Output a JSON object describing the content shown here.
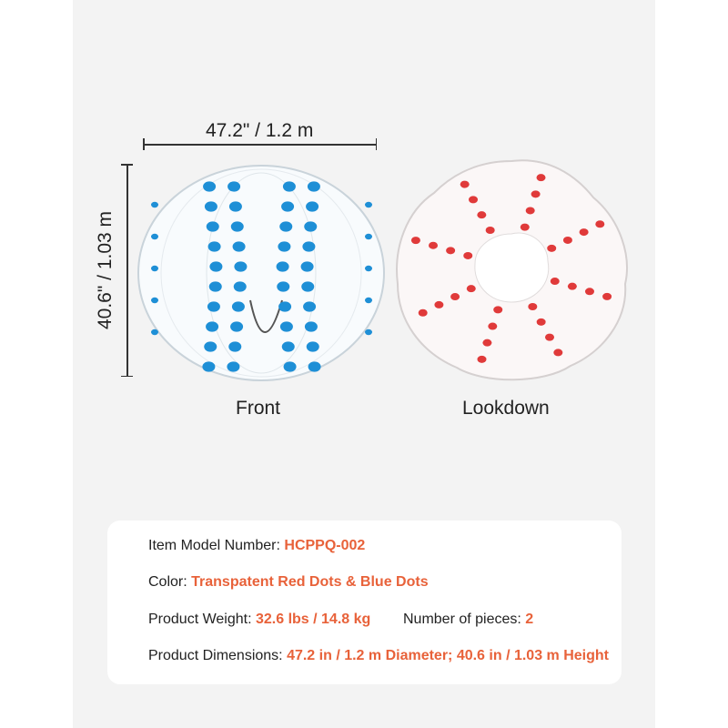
{
  "dimensions": {
    "width_label": "47.2\" / 1.2 m",
    "height_label": "40.6\" / 1.03 m"
  },
  "views": [
    {
      "caption": "Front",
      "dot_color": "#1e8fd6"
    },
    {
      "caption": "Lookdown",
      "dot_color": "#e03a3a"
    }
  ],
  "specs": {
    "model": {
      "label": "Item Model Number: ",
      "value": "HCPPQ-002"
    },
    "color": {
      "label": "Color: ",
      "value": "Transpatent Red Dots & Blue Dots"
    },
    "weight": {
      "label": "Product Weight: ",
      "value": "32.6 lbs / 14.8 kg"
    },
    "pieces": {
      "label": "Number of pieces: ",
      "value": "2"
    },
    "dims": {
      "label": "Product Dimensions: ",
      "value": "47.2 in / 1.2 m Diameter; 40.6 in / 1.03 m Height"
    }
  },
  "colors": {
    "accent": "#e8623a",
    "panel": "#f3f3f3"
  }
}
